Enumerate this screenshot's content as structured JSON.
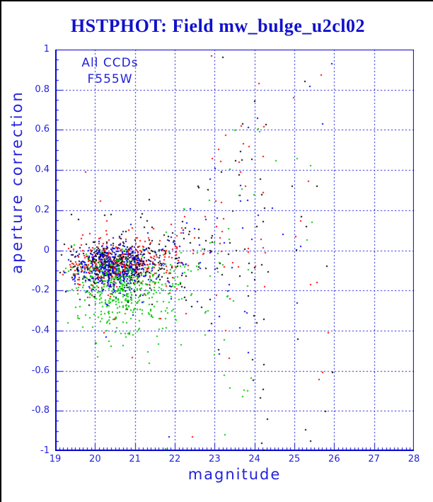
{
  "title": "HSTPHOT: Field mw_bulge_u2cl02",
  "annotations": {
    "line1": "All CCDs",
    "line2": "F555W"
  },
  "axes": {
    "xlabel": "magnitude",
    "ylabel": "aperture correction",
    "x_tick_labels": [
      "19",
      "20",
      "21",
      "22",
      "23",
      "24",
      "25",
      "26",
      "27",
      "28"
    ],
    "y_tick_labels": [
      {
        "v": 1,
        "l": "1"
      },
      {
        "v": 0.8,
        "l": "0.8"
      },
      {
        "v": 0.6,
        "l": "0.6"
      },
      {
        "v": 0.4,
        "l": "0.4"
      },
      {
        "v": 0.2,
        "l": "0.2"
      },
      {
        "v": 0,
        "l": "0"
      },
      {
        "v": -0.2,
        "l": "-0.2"
      },
      {
        "v": -0.4,
        "l": "-0.4"
      },
      {
        "v": -0.6,
        "l": "-0.6"
      },
      {
        "v": -0.8,
        "l": "-0.8"
      },
      {
        "v": -1,
        "l": "-1"
      }
    ]
  },
  "colors": {
    "frame_border": "#000000",
    "plot_blue": "#0000cc",
    "grid_blue": "#1515dd",
    "text_blue": "#2222dd",
    "title_blue": "#1111cc"
  },
  "chart_data": {
    "type": "scatter",
    "title": "HSTPHOT: Field mw_bulge_u2cl02",
    "xlabel": "magnitude",
    "ylabel": "aperture correction",
    "xlim": [
      19,
      28
    ],
    "ylim": [
      -1,
      1
    ],
    "x_major_step": 1,
    "x_minor_step": 0.1,
    "y_major_step": 0.2,
    "y_minor_step": 0.05,
    "grid": "dashed lines on major ticks, ticks inward on left and bottom axes",
    "legend_position": "top-left inside plot (text only: All CCDs / F555W)",
    "marker": "2px filled square",
    "seed": 1234567,
    "series": [
      {
        "name": "ccd-black",
        "color": "#000000"
      },
      {
        "name": "ccd-red",
        "color": "#ff0000"
      },
      {
        "name": "ccd-green",
        "color": "#00c800"
      },
      {
        "name": "ccd-blue",
        "color": "#0000ff"
      }
    ],
    "description": "Dense cluster of ~1700 points at 19.5<mag<22.3 centered near aperture correction -0.05 to -0.2 (green CCD systematically lower and more spread); scatter fans out in a trumpet shape for mag>21.6 reaching +1 and -1 by mag~24; sparse points out to mag~26.",
    "components": [
      {
        "s": 0,
        "t": "g",
        "n": 350,
        "mx": 20.5,
        "sx": 0.55,
        "my": -0.062,
        "sy": 0.052,
        "cx": [
          19.12,
          22.5
        ],
        "cy": [
          -0.3,
          0.14
        ]
      },
      {
        "s": 1,
        "t": "g",
        "n": 320,
        "mx": 20.55,
        "sx": 0.58,
        "my": -0.072,
        "sy": 0.06,
        "cx": [
          19.12,
          22.6
        ],
        "cy": [
          -0.33,
          0.14
        ]
      },
      {
        "s": 3,
        "t": "g",
        "n": 350,
        "mx": 20.45,
        "sx": 0.52,
        "my": -0.088,
        "sy": 0.058,
        "cx": [
          19.2,
          22.5
        ],
        "cy": [
          -0.35,
          0.1
        ]
      },
      {
        "s": 2,
        "t": "g",
        "n": 310,
        "mx": 20.55,
        "sx": 0.58,
        "my": -0.15,
        "sy": 0.08,
        "cx": [
          19.2,
          22.7
        ],
        "cy": [
          -0.5,
          0.08
        ]
      },
      {
        "s": 2,
        "t": "g",
        "n": 170,
        "mx": 20.7,
        "sx": 0.72,
        "my": -0.265,
        "sy": 0.115,
        "cx": [
          19.5,
          23.2
        ],
        "cy": [
          -0.78,
          -0.04
        ]
      },
      {
        "s": 0,
        "t": "g",
        "n": 45,
        "mx": 20.9,
        "sx": 0.95,
        "my": -0.05,
        "sy": 0.17,
        "cx": [
          19.2,
          23.3
        ],
        "cy": [
          -0.55,
          0.4
        ]
      },
      {
        "s": 1,
        "t": "g",
        "n": 40,
        "mx": 20.9,
        "sx": 0.95,
        "my": -0.06,
        "sy": 0.17,
        "cx": [
          19.2,
          23.3
        ],
        "cy": [
          -0.55,
          0.4
        ]
      },
      {
        "s": 3,
        "t": "g",
        "n": 35,
        "mx": 20.8,
        "sx": 0.9,
        "my": -0.07,
        "sy": 0.15,
        "cx": [
          19.2,
          23.0
        ],
        "cy": [
          -0.5,
          0.3
        ]
      },
      {
        "s": 0,
        "t": "f",
        "n": 85,
        "x0": 21.6,
        "x1": 24.35,
        "a0": 0.06,
        "a1": 1.0,
        "up": 0.62
      },
      {
        "s": 1,
        "t": "f",
        "n": 62,
        "x0": 21.7,
        "x1": 24.3,
        "a0": 0.06,
        "a1": 0.95,
        "up": 0.6
      },
      {
        "s": 3,
        "t": "f",
        "n": 45,
        "x0": 21.6,
        "x1": 24.2,
        "a0": 0.06,
        "a1": 0.9,
        "up": 0.5
      },
      {
        "s": 2,
        "t": "f",
        "n": 55,
        "x0": 21.6,
        "x1": 24.2,
        "a0": 0.06,
        "a1": 0.9,
        "up": 0.38
      },
      {
        "s": 0,
        "t": "u",
        "n": 9,
        "x": [
          24.3,
          26.0
        ],
        "y": [
          -0.9,
          0.9
        ]
      },
      {
        "s": 1,
        "t": "u",
        "n": 8,
        "x": [
          24.3,
          25.9
        ],
        "y": [
          -0.8,
          0.9
        ]
      },
      {
        "s": 3,
        "t": "u",
        "n": 6,
        "x": [
          24.3,
          25.9
        ],
        "y": [
          -0.7,
          0.9
        ]
      },
      {
        "s": 2,
        "t": "u",
        "n": 4,
        "x": [
          24.3,
          25.8
        ],
        "y": [
          -0.6,
          0.5
        ]
      }
    ],
    "extra_points": [
      [
        25.94,
        0.93,
        3
      ],
      [
        25.57,
        0.32,
        0
      ],
      [
        25.44,
        0.14,
        2
      ],
      [
        25.03,
        0.07,
        1
      ],
      [
        25.82,
        -0.08,
        0
      ],
      [
        25.57,
        -0.16,
        1
      ],
      [
        25.4,
        -0.95,
        0
      ],
      [
        23.2,
        0.96,
        0
      ],
      [
        22.92,
        0.97,
        1
      ],
      [
        24.18,
        -0.96,
        0
      ],
      [
        23.26,
        -0.92,
        2
      ],
      [
        21.77,
        -0.99,
        2
      ],
      [
        21.86,
        -0.93,
        3
      ],
      [
        22.44,
        -0.93,
        1
      ]
    ]
  }
}
